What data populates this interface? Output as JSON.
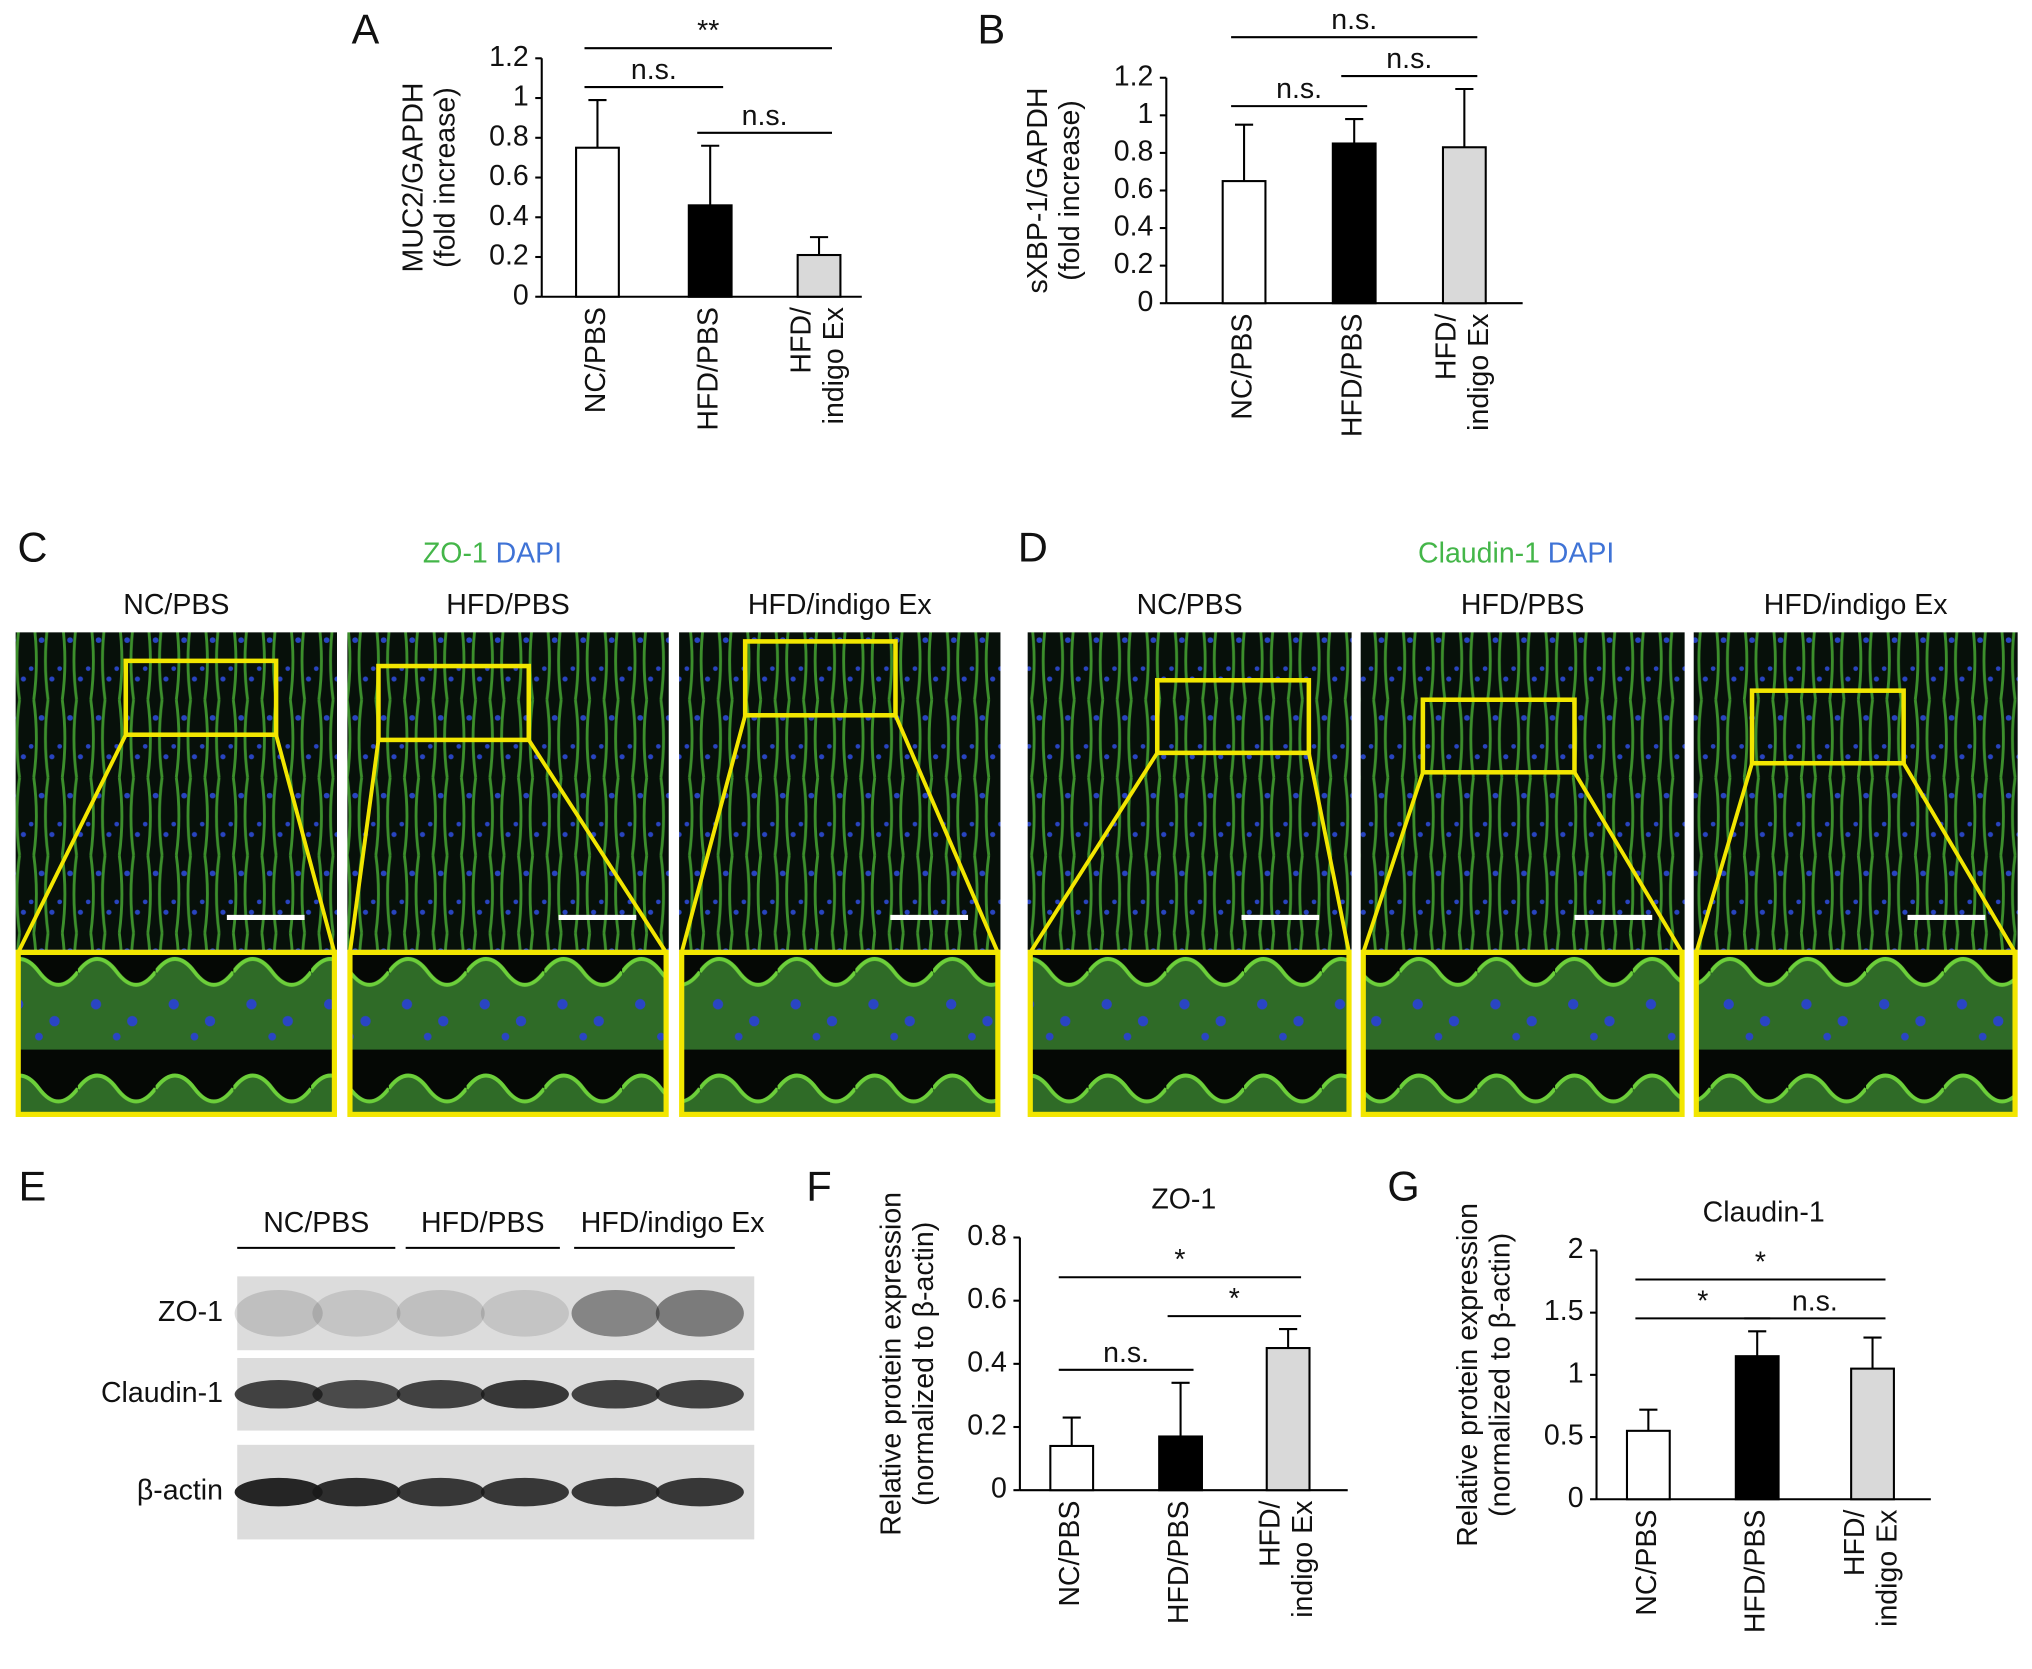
{
  "panel_labels": [
    "A",
    "B",
    "C",
    "D",
    "E",
    "F",
    "G"
  ],
  "chart_data": [
    {
      "type": "bar",
      "ylabel": [
        "MUC2/GAPDH",
        "(fold increase)"
      ],
      "categories": [
        [
          "NC/PBS"
        ],
        [
          "HFD/PBS"
        ],
        [
          "HFD/",
          "indigo Ex"
        ]
      ],
      "values": [
        0.75,
        0.46,
        0.21
      ],
      "errors": [
        0.24,
        0.3,
        0.09
      ],
      "colors": [
        "#ffffff",
        "#000000",
        "#d9d9d9"
      ],
      "ylim": [
        0,
        1.2
      ],
      "yticks": [
        0,
        0.2,
        0.4,
        0.6,
        0.8,
        1,
        1.2
      ],
      "significance": [
        {
          "from": 0,
          "to": 1,
          "label": "n.s."
        },
        {
          "from": 1,
          "to": 2,
          "label": "n.s."
        },
        {
          "from": 0,
          "to": 2,
          "label": "**"
        }
      ]
    },
    {
      "type": "bar",
      "ylabel": [
        "sXBP-1/GAPDH",
        "(fold increase)"
      ],
      "categories": [
        [
          "NC/PBS"
        ],
        [
          "HFD/PBS"
        ],
        [
          "HFD/",
          "indigo Ex"
        ]
      ],
      "values": [
        0.65,
        0.85,
        0.83
      ],
      "errors": [
        0.3,
        0.13,
        0.31
      ],
      "colors": [
        "#ffffff",
        "#000000",
        "#d9d9d9"
      ],
      "ylim": [
        0,
        1.2
      ],
      "yticks": [
        0,
        0.2,
        0.4,
        0.6,
        0.8,
        1,
        1.2
      ],
      "significance": [
        {
          "from": 0,
          "to": 1,
          "label": "n.s."
        },
        {
          "from": 1,
          "to": 2,
          "label": "n.s."
        },
        {
          "from": 0,
          "to": 2,
          "label": "n.s."
        }
      ]
    },
    {
      "type": "bar",
      "title": "ZO-1",
      "ylabel": [
        "Relative protein expression",
        "(normalized to β-actin)"
      ],
      "categories": [
        [
          "NC/PBS"
        ],
        [
          "HFD/PBS"
        ],
        [
          "HFD/",
          "indigo Ex"
        ]
      ],
      "values": [
        0.14,
        0.17,
        0.45
      ],
      "errors": [
        0.09,
        0.17,
        0.06
      ],
      "colors": [
        "#ffffff",
        "#000000",
        "#d9d9d9"
      ],
      "ylim": [
        0,
        0.8
      ],
      "yticks": [
        0,
        0.2,
        0.4,
        0.6,
        0.8
      ],
      "significance": [
        {
          "from": 0,
          "to": 1,
          "label": "n.s."
        },
        {
          "from": 1,
          "to": 2,
          "label": "*"
        },
        {
          "from": 0,
          "to": 2,
          "label": "*"
        }
      ]
    },
    {
      "type": "bar",
      "title": "Claudin-1",
      "ylabel": [
        "Relative protein expression",
        "(normalized to β-actin)"
      ],
      "categories": [
        [
          "NC/PBS"
        ],
        [
          "HFD/PBS"
        ],
        [
          "HFD/",
          "indigo Ex"
        ]
      ],
      "values": [
        0.55,
        1.15,
        1.05
      ],
      "errors": [
        0.17,
        0.2,
        0.25
      ],
      "colors": [
        "#ffffff",
        "#000000",
        "#d9d9d9"
      ],
      "ylim": [
        0,
        2
      ],
      "yticks": [
        0,
        0.5,
        1,
        1.5,
        2
      ],
      "significance": [
        {
          "from": 0,
          "to": 1,
          "label": "*"
        },
        {
          "from": 1,
          "to": 2,
          "label": "n.s."
        },
        {
          "from": 0,
          "to": 2,
          "label": "*"
        }
      ]
    }
  ],
  "micrographs": [
    {
      "stain": [
        {
          "text": "ZO-1",
          "color": "#44b649"
        },
        {
          "text": "DAPI",
          "color": "#3f73d6"
        }
      ],
      "groups": [
        "NC/PBS",
        "HFD/PBS",
        "HFD/indigo Ex"
      ]
    },
    {
      "stain": [
        {
          "text": "Claudin-1",
          "color": "#44b649"
        },
        {
          "text": "DAPI",
          "color": "#3f73d6"
        }
      ],
      "groups": [
        "NC/PBS",
        "HFD/PBS",
        "HFD/indigo Ex"
      ]
    }
  ],
  "blot": {
    "groups": [
      "NC/PBS",
      "HFD/PBS",
      "HFD/indigo Ex"
    ],
    "rows": [
      "ZO-1",
      "Claudin-1",
      "β-actin"
    ]
  }
}
